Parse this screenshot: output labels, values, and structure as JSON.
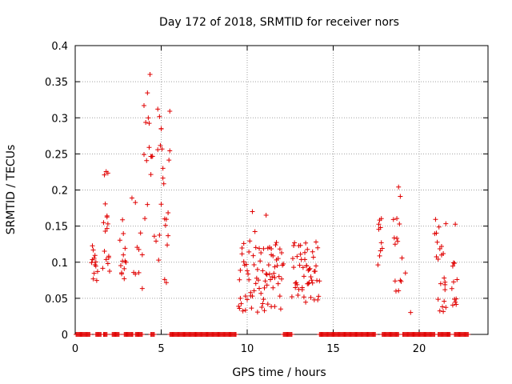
{
  "chart_data": {
    "type": "scatter",
    "title": "Day 172 of 2018, SRMTID for receiver nors",
    "xlabel": "GPS time / hours",
    "ylabel": "SRMTID / TECUs",
    "xlim": [
      0,
      24
    ],
    "ylim": [
      0,
      0.4
    ],
    "xticks": [
      0,
      5,
      10,
      15,
      20
    ],
    "xtick_labels": [
      "0",
      "5",
      "10",
      "15",
      "20"
    ],
    "yticks": [
      0,
      0.05,
      0.1,
      0.15,
      0.2,
      0.25,
      0.3,
      0.35,
      0.4
    ],
    "ytick_labels": [
      "0",
      "0.05",
      "0.1",
      "0.15",
      "0.2",
      "0.25",
      "0.3",
      "0.35",
      "0.4"
    ],
    "grid": true,
    "marker": "+",
    "color": "#e00000",
    "series": [
      {
        "name": "SRMTID",
        "x": [
          0.95,
          1.0,
          1.05,
          1.1,
          1.15,
          1.2,
          1.25,
          1.0,
          1.1,
          1.2,
          1.3,
          1.05,
          1.15,
          1.6,
          1.65,
          1.7,
          1.75,
          1.8,
          1.85,
          1.9,
          1.95,
          2.0,
          1.7,
          1.8,
          1.9,
          1.85,
          1.9,
          1.95,
          1.75,
          1.85,
          2.6,
          2.65,
          2.7,
          2.75,
          2.8,
          2.85,
          2.9,
          2.95,
          2.7,
          2.8,
          2.9,
          2.75,
          2.85,
          3.3,
          3.4,
          3.5,
          3.6,
          3.7,
          3.8,
          3.9,
          4.0,
          4.1,
          4.2,
          3.5,
          3.7,
          3.9,
          4.05,
          4.15,
          4.25,
          4.3,
          4.35,
          4.4,
          4.45,
          4.3,
          4.4,
          4.2,
          4.0,
          4.5,
          4.6,
          4.7,
          4.8,
          4.85,
          4.9,
          4.95,
          5.0,
          4.8,
          4.9,
          5.0,
          5.05,
          5.1,
          5.15,
          5.2,
          5.25,
          5.3,
          5.35,
          5.4,
          5.45,
          5.5,
          5.4,
          5.5,
          5.3,
          5.2,
          5.1,
          5.0,
          9.5,
          9.55,
          9.6,
          9.65,
          9.7,
          9.75,
          9.8,
          9.85,
          9.9,
          9.95,
          10.0,
          10.05,
          10.1,
          10.15,
          10.2,
          10.25,
          10.3,
          10.35,
          10.4,
          10.45,
          10.5,
          10.55,
          10.6,
          10.65,
          10.7,
          10.75,
          10.8,
          10.85,
          10.9,
          10.95,
          11.0,
          11.05,
          11.1,
          11.15,
          11.2,
          11.25,
          11.3,
          11.35,
          11.4,
          11.45,
          11.5,
          11.55,
          11.6,
          11.65,
          11.7,
          11.75,
          11.8,
          11.85,
          11.9,
          11.95,
          12.0,
          12.05,
          12.1,
          9.6,
          9.7,
          9.8,
          9.9,
          10.0,
          10.2,
          10.4,
          10.6,
          10.8,
          11.0,
          11.2,
          11.4,
          11.6,
          11.8,
          12.0,
          9.55,
          10.1,
          10.3,
          10.5,
          10.7,
          10.9,
          11.1,
          11.3,
          11.5,
          11.7,
          11.9,
          10.95,
          11.15,
          11.4,
          11.6,
          12.6,
          12.65,
          12.7,
          12.75,
          12.8,
          12.85,
          12.9,
          12.95,
          13.0,
          13.05,
          13.1,
          13.15,
          13.2,
          13.25,
          13.3,
          13.35,
          13.4,
          13.45,
          13.5,
          13.55,
          13.6,
          13.65,
          13.7,
          13.75,
          13.8,
          13.85,
          13.9,
          13.95,
          14.0,
          14.05,
          14.1,
          14.15,
          14.2,
          12.7,
          12.9,
          13.1,
          13.3,
          13.5,
          13.7,
          13.9,
          14.1,
          12.8,
          13.0,
          13.2,
          13.4,
          13.6,
          13.8,
          14.0,
          13.35,
          13.45,
          13.55,
          17.6,
          17.65,
          17.7,
          17.75,
          17.8,
          17.85,
          17.65,
          17.7,
          17.75,
          17.8,
          18.5,
          18.55,
          18.6,
          18.65,
          18.7,
          18.75,
          18.8,
          18.85,
          18.9,
          18.95,
          19.0,
          18.6,
          18.7,
          18.8,
          18.9,
          19.2,
          19.5,
          20.9,
          20.95,
          21.0,
          21.05,
          21.1,
          21.15,
          21.2,
          21.25,
          21.3,
          21.35,
          21.4,
          21.45,
          21.5,
          21.55,
          21.0,
          21.1,
          21.2,
          21.3,
          21.4,
          21.5,
          21.45,
          21.5,
          21.55,
          21.9,
          21.95,
          22.0,
          22.05,
          22.1,
          22.15,
          22.2,
          21.95,
          22.05,
          22.15,
          22.0,
          22.1
        ]
      }
    ],
    "zero_bands": [
      [
        0.05,
        0.9
      ],
      [
        1.2,
        1.55
      ],
      [
        1.65,
        1.85
      ],
      [
        2.15,
        2.55
      ],
      [
        2.85,
        3.35
      ],
      [
        3.5,
        3.9
      ],
      [
        4.4,
        4.6
      ],
      [
        5.5,
        9.4
      ],
      [
        12.1,
        12.65
      ],
      [
        14.2,
        17.5
      ],
      [
        17.85,
        18.85
      ],
      [
        19.05,
        20.95
      ],
      [
        21.1,
        21.85
      ],
      [
        22.05,
        22.9
      ]
    ]
  }
}
